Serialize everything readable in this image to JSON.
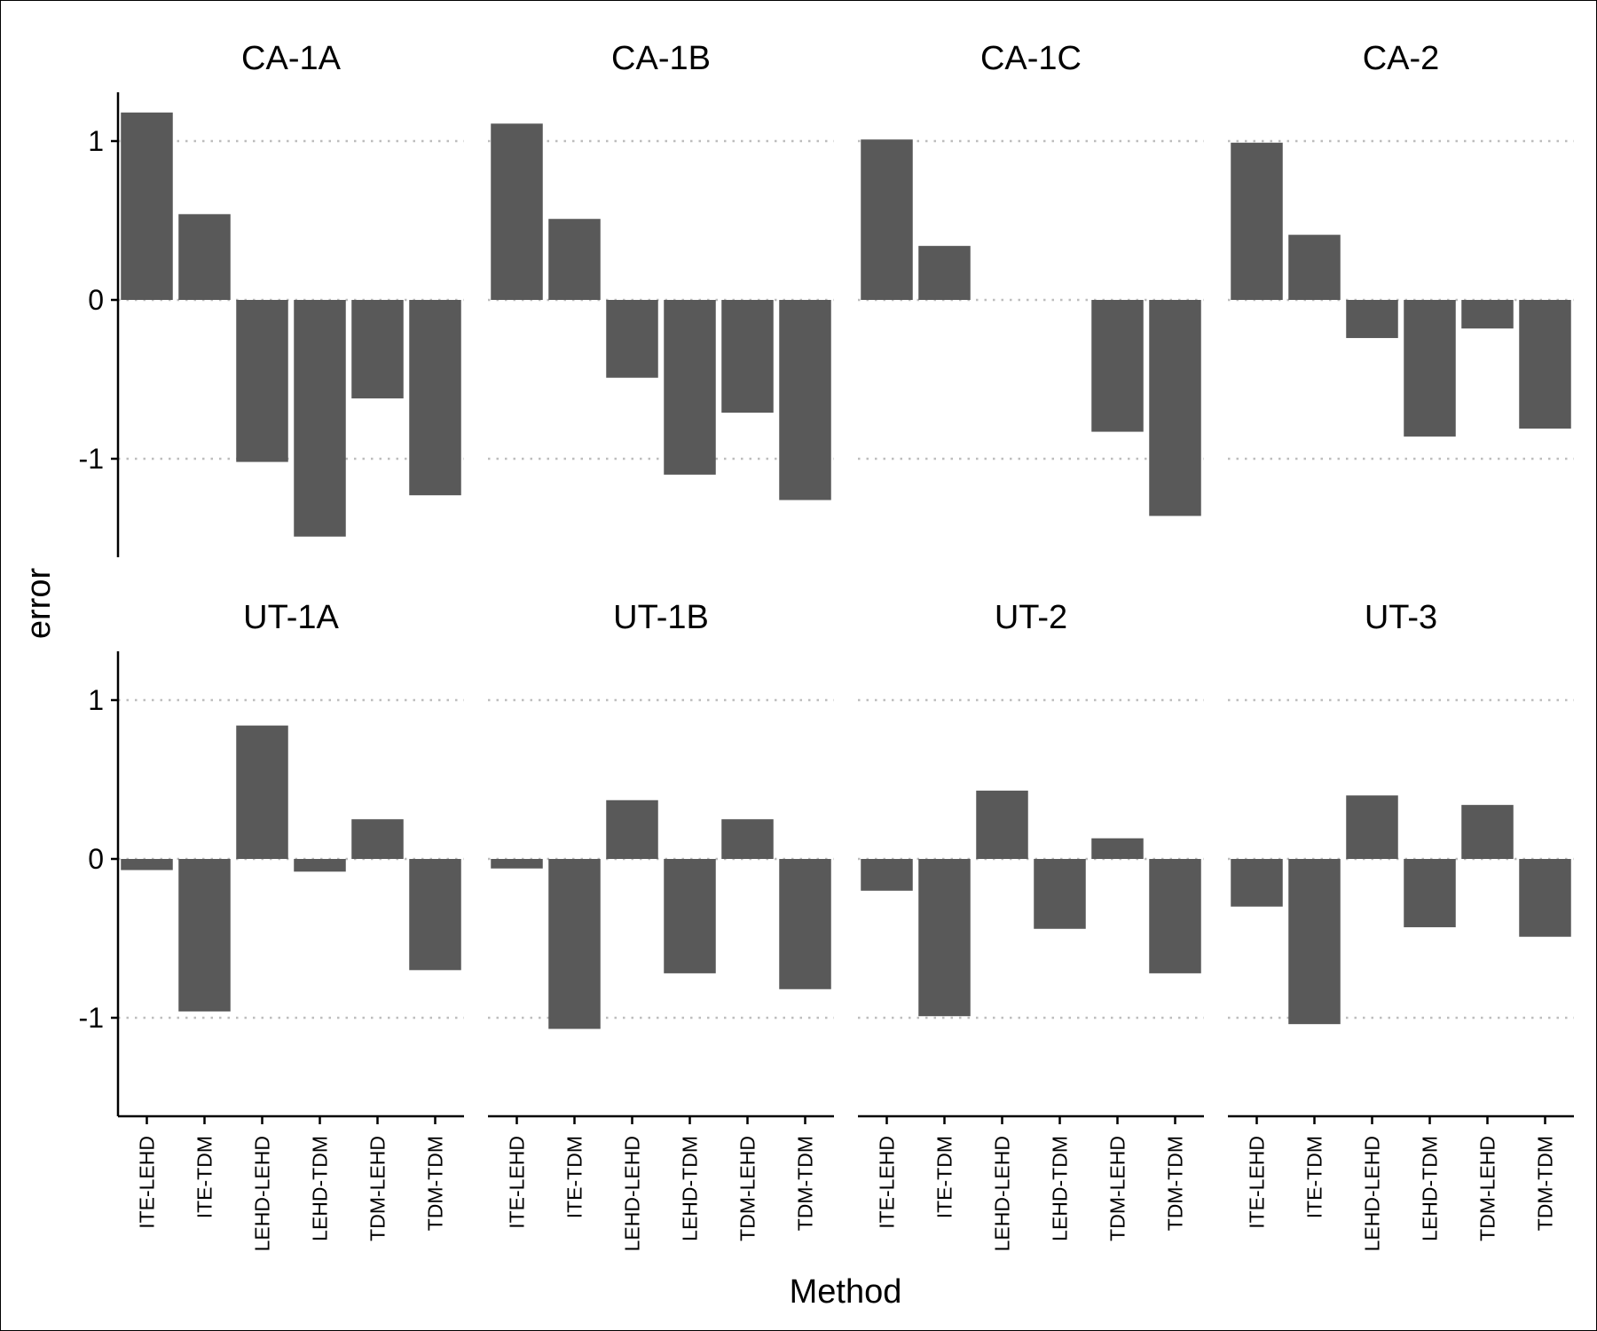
{
  "chart_data": {
    "type": "bar",
    "layout": "faceted 2x4",
    "xlabel": "Method",
    "ylabel": "error",
    "ylim": [
      -1.62,
      1.32
    ],
    "yticks": [
      "1",
      "0",
      "-1"
    ],
    "ytick_values": [
      1,
      0,
      -1
    ],
    "grid": "horizontal dotted at tick values",
    "bar_color": "#595959",
    "categories": [
      "ITE-LEHD",
      "ITE-TDM",
      "LEHD-LEHD",
      "LEHD-TDM",
      "TDM-LEHD",
      "TDM-TDM"
    ],
    "panels": [
      {
        "name": "CA-1A",
        "values": [
          1.18,
          0.54,
          -1.02,
          -1.49,
          -0.62,
          -1.23
        ]
      },
      {
        "name": "CA-1B",
        "values": [
          1.11,
          0.51,
          -0.49,
          -1.1,
          -0.71,
          -1.26
        ]
      },
      {
        "name": "CA-1C",
        "values": [
          1.01,
          0.34,
          0,
          0,
          -0.83,
          -1.36
        ]
      },
      {
        "name": "CA-2",
        "values": [
          0.99,
          0.41,
          -0.24,
          -0.86,
          -0.18,
          -0.81
        ]
      },
      {
        "name": "UT-1A",
        "values": [
          -0.07,
          -0.96,
          0.84,
          -0.08,
          0.25,
          -0.7
        ]
      },
      {
        "name": "UT-1B",
        "values": [
          -0.06,
          -1.07,
          0.37,
          -0.72,
          0.25,
          -0.82
        ]
      },
      {
        "name": "UT-2",
        "values": [
          -0.2,
          -0.99,
          0.43,
          -0.44,
          0.13,
          -0.72
        ]
      },
      {
        "name": "UT-3",
        "values": [
          -0.3,
          -1.04,
          0.4,
          -0.43,
          0.34,
          -0.49
        ]
      }
    ]
  }
}
